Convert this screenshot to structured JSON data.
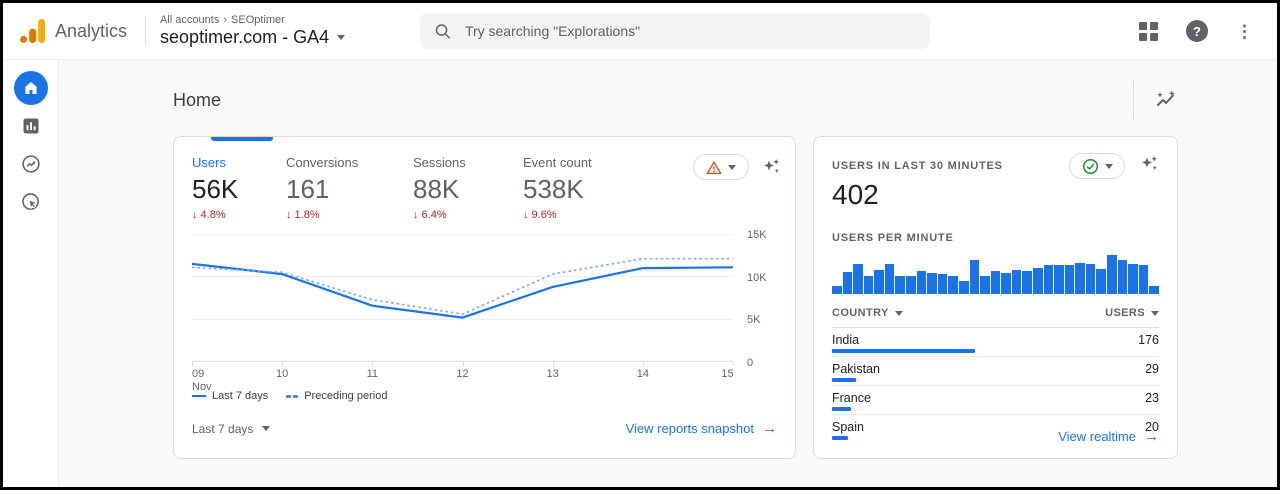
{
  "header": {
    "product": "Analytics",
    "breadcrumb": {
      "items": [
        "All accounts",
        "SEOptimer"
      ],
      "separator": "›"
    },
    "property": "seoptimer.com - GA4",
    "search": {
      "placeholder": "Try searching \"Explorations\""
    },
    "help_glyph": "?",
    "kebab_glyph": "⋮"
  },
  "sidebar": {
    "items": [
      {
        "name": "home",
        "active": true
      },
      {
        "name": "reports",
        "active": false
      },
      {
        "name": "explore",
        "active": false
      },
      {
        "name": "advertising",
        "active": false
      }
    ]
  },
  "page": {
    "title": "Home"
  },
  "overview_card": {
    "metrics": [
      {
        "label": "Users",
        "value": "56K",
        "delta": "↓ 4.8%",
        "selected": true
      },
      {
        "label": "Conversions",
        "value": "161",
        "delta": "↓ 1.8%",
        "selected": false
      },
      {
        "label": "Sessions",
        "value": "88K",
        "delta": "↓ 6.4%",
        "selected": false
      },
      {
        "label": "Event count",
        "value": "538K",
        "delta": "↓ 9.6%",
        "selected": false
      }
    ],
    "range_label": "Last 7 days",
    "view_link": "View reports snapshot",
    "link_arrow": "→"
  },
  "realtime_card": {
    "title": "USERS IN LAST 30 MINUTES",
    "value": "402",
    "per_minute_label": "USERS PER MINUTE",
    "view_link": "View realtime",
    "link_arrow": "→"
  },
  "chart_data": [
    {
      "id": "users-trend",
      "type": "line",
      "x": [
        "09",
        "10",
        "11",
        "12",
        "13",
        "14",
        "15"
      ],
      "x_sublabel": "Nov",
      "series": [
        {
          "name": "Last 7 days",
          "style": "solid",
          "values": [
            11500,
            10300,
            6600,
            5200,
            8800,
            11000,
            11100
          ]
        },
        {
          "name": "Preceding period",
          "style": "dashed",
          "values": [
            11100,
            10500,
            7300,
            5600,
            10300,
            12100,
            12100
          ]
        }
      ],
      "ylim": [
        0,
        15000
      ],
      "yticks": [
        {
          "v": 0,
          "label": "0"
        },
        {
          "v": 5000,
          "label": "5K"
        },
        {
          "v": 10000,
          "label": "10K"
        },
        {
          "v": 15000,
          "label": "15K"
        }
      ],
      "grid": true,
      "legend_position": "bottom"
    },
    {
      "id": "users-per-minute",
      "type": "bar",
      "title": "USERS PER MINUTE",
      "values": [
        20,
        52,
        72,
        44,
        58,
        72,
        44,
        42,
        54,
        50,
        48,
        44,
        32,
        82,
        44,
        54,
        50,
        58,
        54,
        63,
        68,
        70,
        70,
        75,
        72,
        60,
        92,
        82,
        72,
        70,
        20
      ],
      "ylim": [
        0,
        100
      ]
    },
    {
      "id": "users-by-country",
      "type": "table",
      "columns": [
        "COUNTRY",
        "USERS"
      ],
      "total": 402,
      "rows": [
        {
          "country": "India",
          "users": "176",
          "bar_pct": 43.8
        },
        {
          "country": "Pakistan",
          "users": "29",
          "bar_pct": 7.2
        },
        {
          "country": "France",
          "users": "23",
          "bar_pct": 5.7
        },
        {
          "country": "Spain",
          "users": "20",
          "bar_pct": 5.0
        }
      ]
    }
  ],
  "colors": {
    "accent": "#1a73e8",
    "accent_light": "#7baaf7",
    "negative": "#c5221f",
    "warning": "#d0541b",
    "positive": "#1e8e3e"
  }
}
